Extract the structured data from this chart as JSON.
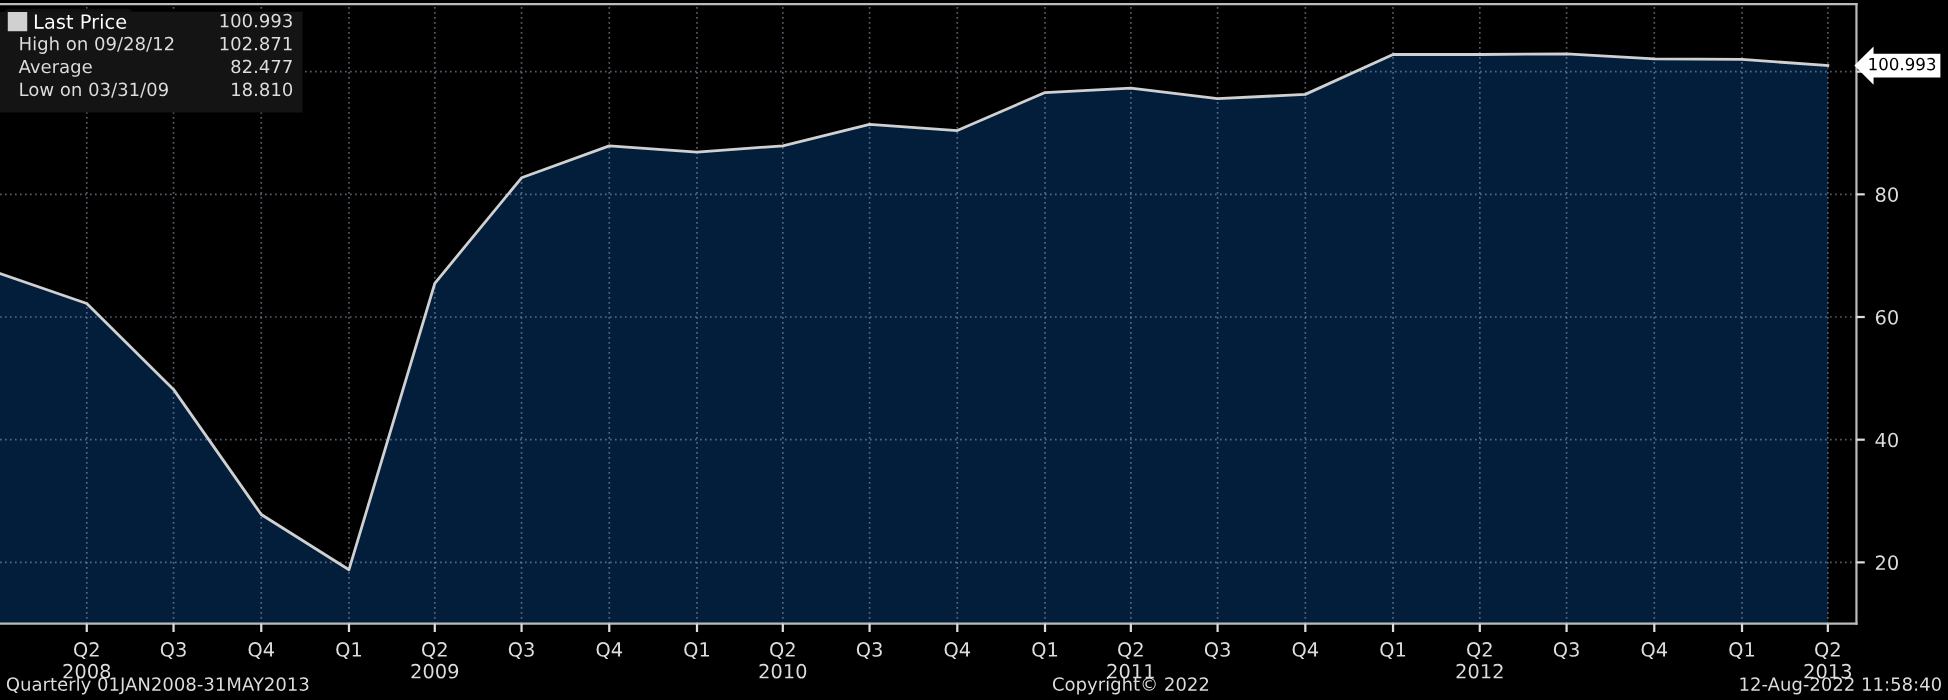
{
  "chart_data": {
    "type": "area",
    "x": [
      "2008-01",
      "2008-04",
      "2008-07",
      "2008-10",
      "2009-01",
      "2009-04",
      "2009-07",
      "2009-10",
      "2010-01",
      "2010-04",
      "2010-07",
      "2010-10",
      "2011-01",
      "2011-04",
      "2011-07",
      "2011-10",
      "2012-01",
      "2012-04",
      "2012-07",
      "2012-10",
      "2013-01",
      "2013-04"
    ],
    "series": [
      {
        "name": "Last Price",
        "color": "#d0d0d0",
        "values": [
          67.1,
          62.2,
          48.2,
          27.8,
          18.8,
          65.5,
          82.7,
          87.9,
          86.9,
          87.9,
          91.4,
          90.4,
          96.6,
          97.3,
          95.6,
          96.3,
          102.8,
          102.8,
          102.9,
          102.1,
          102.0,
          100.993
        ]
      }
    ],
    "xlim": [
      "2008-01",
      "2013-05"
    ],
    "xticks": [
      {
        "value": "2008-04",
        "label": "Q2\n2008"
      },
      {
        "value": "2008-07",
        "label": "Q3"
      },
      {
        "value": "2008-10",
        "label": "Q4"
      },
      {
        "value": "2009-01",
        "label": "Q1"
      },
      {
        "value": "2009-04",
        "label": "Q2\n2009"
      },
      {
        "value": "2009-07",
        "label": "Q3"
      },
      {
        "value": "2009-10",
        "label": "Q4"
      },
      {
        "value": "2010-01",
        "label": "Q1"
      },
      {
        "value": "2010-04",
        "label": "Q2\n2010"
      },
      {
        "value": "2010-07",
        "label": "Q3"
      },
      {
        "value": "2010-10",
        "label": "Q4"
      },
      {
        "value": "2011-01",
        "label": "Q1"
      },
      {
        "value": "2011-04",
        "label": "Q2\n2011"
      },
      {
        "value": "2011-07",
        "label": "Q3"
      },
      {
        "value": "2011-10",
        "label": "Q4"
      },
      {
        "value": "2012-01",
        "label": "Q1"
      },
      {
        "value": "2012-04",
        "label": "Q2\n2012"
      },
      {
        "value": "2012-07",
        "label": "Q3"
      },
      {
        "value": "2012-10",
        "label": "Q4"
      },
      {
        "value": "2013-01",
        "label": "Q1"
      },
      {
        "value": "2013-04",
        "label": "Q2\n2013"
      }
    ],
    "ylim": [
      10,
      111
    ],
    "yticks": [
      20,
      40,
      60,
      80,
      {
        "value": 100,
        "label": null
      }
    ],
    "grid": true,
    "legend": "top left",
    "annotations": [
      "100.993",
      "High on 09/28/12",
      "102.871",
      "Average",
      "82.477",
      "Low on 03/31/09",
      "18.810",
      "Quarterly 01JAN2008-31MAY2013",
      "Copyright© 2022",
      "12-Aug-2022 11:58:40",
      {
        "text": "100.993",
        "x": "2013-04",
        "y": 100.993
      }
    ]
  }
}
